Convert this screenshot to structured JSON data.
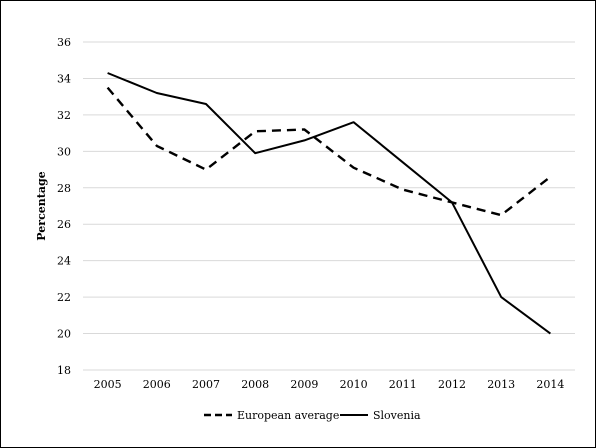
{
  "chart_data": {
    "type": "line",
    "title": "",
    "xlabel": "",
    "ylabel": "Percentage",
    "categories": [
      "2005",
      "2006",
      "2007",
      "2008",
      "2009",
      "2010",
      "2011",
      "2012",
      "2013",
      "2014"
    ],
    "ylim": [
      18,
      36
    ],
    "yticks": [
      18,
      20,
      22,
      24,
      26,
      28,
      30,
      32,
      34,
      36
    ],
    "grid": true,
    "legend_position": "bottom",
    "series": [
      {
        "name": "European average",
        "style": "dashed",
        "color": "#000000",
        "values": [
          33.5,
          30.3,
          29.0,
          31.1,
          31.2,
          29.1,
          27.9,
          27.2,
          26.5,
          28.6
        ]
      },
      {
        "name": "Slovenia",
        "style": "solid",
        "color": "#000000",
        "values": [
          34.3,
          33.2,
          32.6,
          29.9,
          30.6,
          31.6,
          29.4,
          27.2,
          22.0,
          20.0
        ]
      }
    ]
  },
  "colors": {
    "gridline": "#d9d9d9",
    "line": "#000000"
  }
}
